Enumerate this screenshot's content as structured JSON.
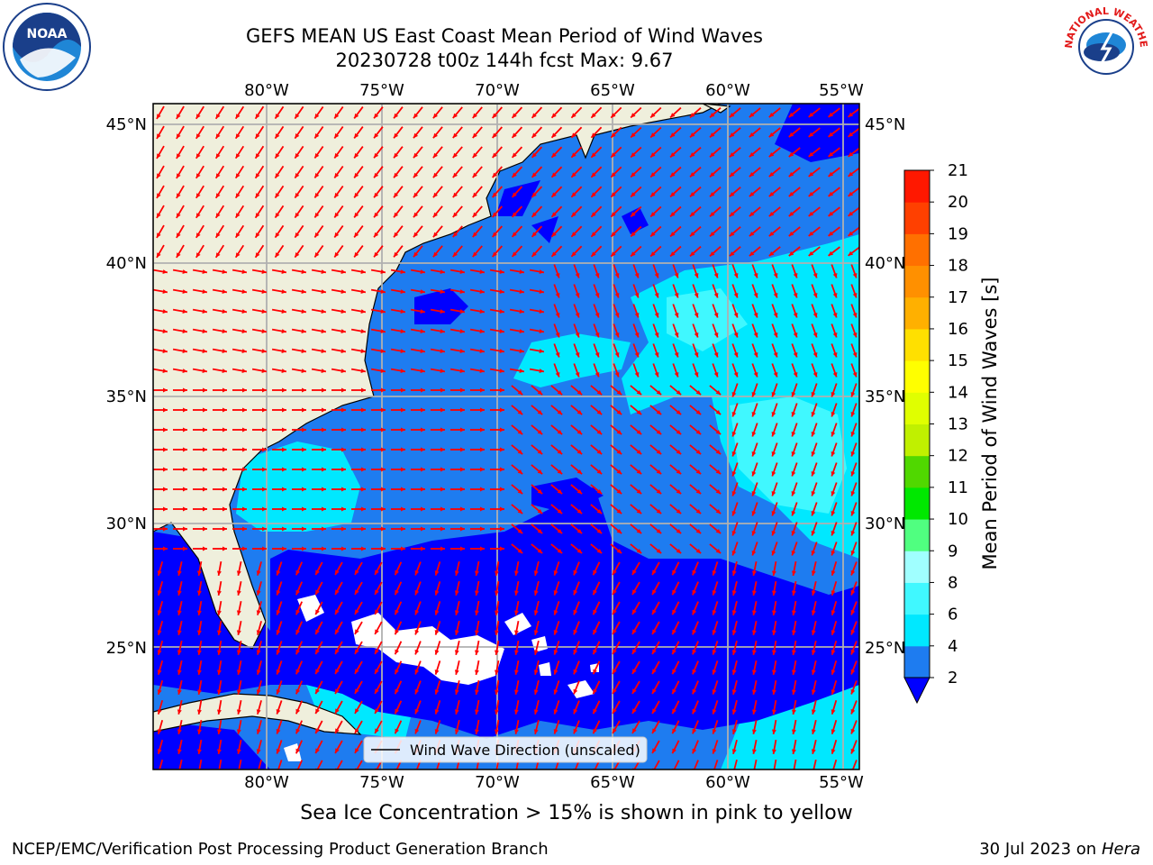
{
  "title_line1": "GEFS MEAN US East Coast Mean Period of Wind Waves",
  "title_line2": "20230728 t00z 144h fcst   Max: 9.67",
  "note": "Sea Ice Concentration > 15% is shown in pink to yellow",
  "footer_left": "NCEP/EMC/Verification Post Processing Product Generation Branch",
  "footer_date": "30 Jul 2023 on ",
  "footer_machine": "Hera",
  "legend_label": "Wind Wave Direction (unscaled)",
  "logos": {
    "noaa": "NOAA",
    "nws": "NATIONAL WEATHER SERVICE"
  },
  "colors": {
    "land": "#efefdc",
    "ocean_low": "#0000ff",
    "ocean_2_4": "#1e7cf0",
    "ocean_4_6": "#00e8ff",
    "ocean_6_8": "#40f8ff",
    "arrow": "#ff0000",
    "grid": "#b0b0b0"
  },
  "map": {
    "lon_ticks": [
      "80°W",
      "75°W",
      "70°W",
      "65°W",
      "60°W",
      "55°W"
    ],
    "lat_ticks": [
      "45°N",
      "40°N",
      "35°N",
      "30°N",
      "25°N"
    ]
  },
  "colorbar": {
    "label": "Mean Period of Wind Waves [s]",
    "ticks": [
      "21",
      "20",
      "19",
      "18",
      "17",
      "16",
      "15",
      "14",
      "13",
      "12",
      "11",
      "10",
      "9",
      "8",
      "6",
      "4",
      "2"
    ],
    "levels": [
      2,
      4,
      6,
      8,
      9,
      10,
      11,
      12,
      13,
      14,
      15,
      16,
      17,
      18,
      19,
      20,
      21
    ],
    "colors": [
      "#1e7cf0",
      "#00e8ff",
      "#40f8ff",
      "#a0ffff",
      "#50ff80",
      "#00e800",
      "#50d800",
      "#c0f000",
      "#e0ff00",
      "#ffff00",
      "#ffe000",
      "#ffb000",
      "#ff9000",
      "#ff7000",
      "#ff4000",
      "#ff1800"
    ],
    "under_color": "#0000ff"
  }
}
